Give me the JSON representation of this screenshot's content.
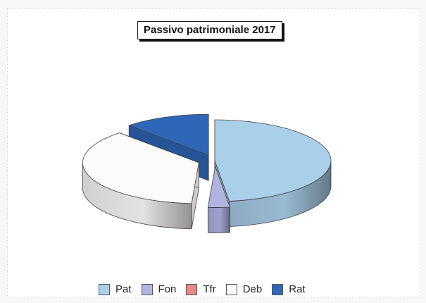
{
  "chart_data": {
    "type": "pie",
    "title": "Passivo patrimoniale 2017",
    "legend_position": "bottom",
    "three_d": true,
    "series": [
      {
        "name": "Pat",
        "value": 48,
        "color": "#a9cfe9",
        "exploded": false
      },
      {
        "name": "Fon",
        "value": 3,
        "color": "#b0b4e0",
        "exploded": true
      },
      {
        "name": "Tfr",
        "value": 0,
        "color": "#e88a8a",
        "exploded": false
      },
      {
        "name": "Deb",
        "value": 37,
        "color": "#fdfafa",
        "exploded": true
      },
      {
        "name": "Rat",
        "value": 12,
        "color": "#2f67b8",
        "exploded": true
      }
    ]
  }
}
